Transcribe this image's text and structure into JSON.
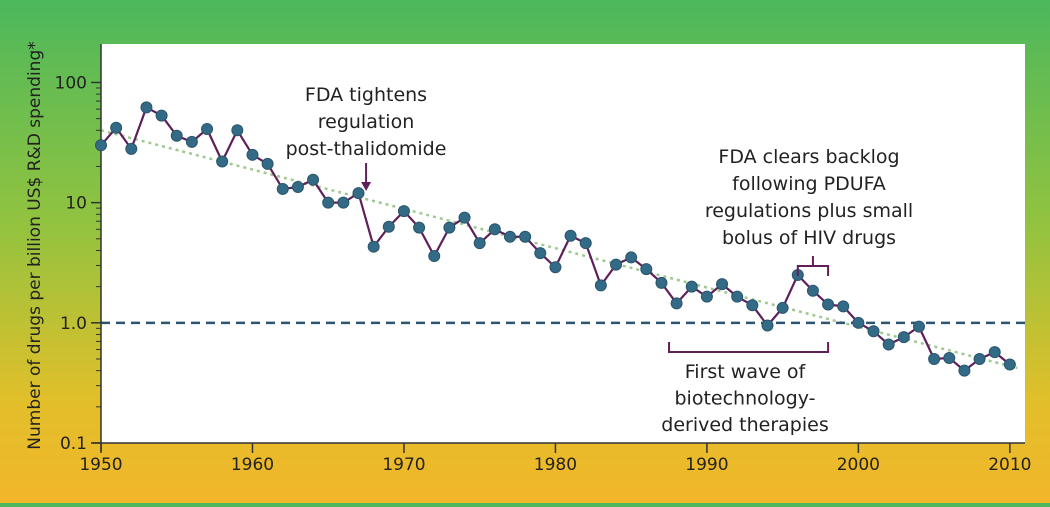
{
  "chart_data": {
    "type": "line",
    "ylabel": "Number of drugs per billion US$ R&D spending*",
    "xlabel": "",
    "title": "",
    "xlim": [
      1950,
      2011
    ],
    "ylim": [
      0.1,
      100
    ],
    "y_scale": "log",
    "x_ticks": [
      1950,
      1960,
      1970,
      1980,
      1990,
      2000,
      2010
    ],
    "y_ticks": [
      {
        "value": 0.1,
        "label": "0.1"
      },
      {
        "value": 1,
        "label": "1.0"
      },
      {
        "value": 10,
        "label": "10"
      },
      {
        "value": 100,
        "label": "100"
      }
    ],
    "reference_line": {
      "y": 1.0,
      "style": "dashed"
    },
    "trend_line": {
      "x": [
        1950,
        2010.5
      ],
      "y": [
        40,
        0.42
      ],
      "style": "dotted"
    },
    "series": [
      {
        "x": [
          1950,
          1951,
          1952,
          1953,
          1954,
          1955,
          1956,
          1957,
          1958,
          1959,
          1960,
          1961,
          1962,
          1963,
          1964,
          1965,
          1966,
          1967,
          1968,
          1969,
          1970,
          1971,
          1972,
          1973,
          1974,
          1975,
          1976,
          1977,
          1978,
          1979,
          1980,
          1981,
          1982,
          1983,
          1984,
          1985,
          1986,
          1987,
          1988,
          1989,
          1990,
          1991,
          1992,
          1993,
          1994,
          1995,
          1996,
          1997,
          1998,
          1999,
          2000,
          2001,
          2002,
          2003,
          2004,
          2005,
          2006,
          2007,
          2008,
          2009,
          2010
        ],
        "y": [
          30,
          42,
          28,
          62,
          53,
          36,
          32,
          41,
          22,
          40,
          25,
          21,
          13,
          13.5,
          15.5,
          10,
          10,
          12,
          4.3,
          6.3,
          8.5,
          6.2,
          3.6,
          6.2,
          7.5,
          4.6,
          6,
          5.2,
          5.2,
          3.8,
          2.9,
          5.3,
          4.6,
          2.05,
          3.05,
          3.5,
          2.8,
          2.15,
          1.45,
          2.0,
          1.65,
          2.1,
          1.65,
          1.4,
          0.95,
          1.33,
          2.5,
          1.85,
          1.42,
          1.37,
          1.0,
          0.85,
          0.66,
          0.76,
          0.93,
          0.5,
          0.51,
          0.4,
          0.5,
          0.57,
          0.45
        ]
      }
    ],
    "colors": {
      "line": "#5e1f5b",
      "marker": "#336a85",
      "marker_edge": "#2a566d",
      "trend": "#9fc990",
      "reference": "#2d5570",
      "annotation": "#5e1f5b",
      "plot_background": "#ffffff"
    },
    "annotations": [
      {
        "lines": [
          "FDA tightens",
          "regulation",
          "post-thalidomide"
        ],
        "x": 1967.5,
        "marker": "arrow-down"
      },
      {
        "lines": [
          "FDA clears backlog",
          "following PDUFA",
          "regulations plus small",
          "bolus of HIV drugs"
        ],
        "x_range": [
          1996,
          1998
        ],
        "marker": "bracket-down"
      },
      {
        "lines": [
          "First wave of",
          "biotechnology-",
          "derived therapies"
        ],
        "x_range": [
          1987.5,
          1998
        ],
        "marker": "bracket-up"
      }
    ]
  }
}
